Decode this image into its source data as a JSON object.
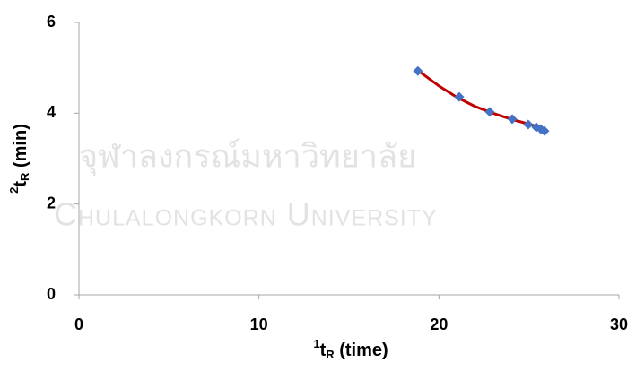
{
  "chart_data": {
    "type": "scatter",
    "xlabel": [
      "1",
      "t",
      "R",
      " (time)"
    ],
    "ylabel": [
      "2",
      "t",
      "R",
      " (min)"
    ],
    "watermark": [
      "จุฬาลงกรณ์มหาวิทยาลัย",
      "Chulalongkorn University"
    ],
    "xlim": [
      0,
      30
    ],
    "xticks": [
      0,
      10,
      20,
      30
    ],
    "ylim": [
      0,
      6
    ],
    "yticks": [
      0,
      2,
      4,
      6
    ],
    "grid": false,
    "series": [
      {
        "kind": "points",
        "color": "#4472c4",
        "x": [
          18.83,
          21.13,
          22.82,
          24.07,
          24.96,
          25.41,
          25.66,
          25.86
        ],
        "values": [
          4.93,
          4.36,
          4.03,
          3.87,
          3.75,
          3.69,
          3.65,
          3.61
        ]
      },
      {
        "kind": "line",
        "color": "#c00000",
        "x": [
          18.8,
          20,
          21,
          22,
          23,
          24,
          25,
          25.9
        ],
        "values": [
          4.95,
          4.6,
          4.35,
          4.15,
          4.0,
          3.87,
          3.76,
          3.66
        ]
      }
    ]
  }
}
